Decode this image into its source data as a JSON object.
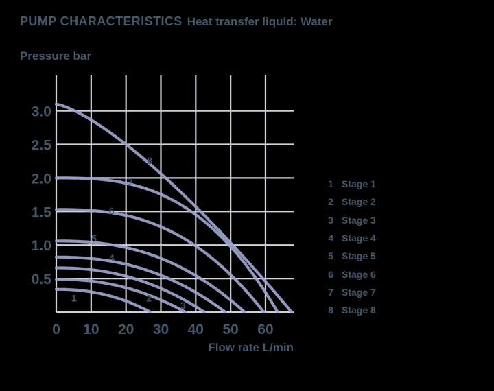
{
  "title": {
    "main": "PUMP CHARACTERISTICS",
    "subtitle": "Heat transfer liquid: Water"
  },
  "axes": {
    "y_title": "Pressure bar",
    "x_title": "Flow rate L/min",
    "y_ticks": [
      "0.5",
      "1.0",
      "1.5",
      "2.0",
      "2.5",
      "3.0"
    ],
    "x_ticks": [
      "0",
      "10",
      "20",
      "30",
      "40",
      "50",
      "60"
    ]
  },
  "chart_data": {
    "type": "line",
    "title": "PUMP CHARACTERISTICS Heat transfer liquid: Water",
    "xlabel": "Flow rate L/min",
    "ylabel": "Pressure bar",
    "xlim": [
      0,
      68
    ],
    "ylim": [
      0,
      3.5
    ],
    "grid": true,
    "legend_position": "right",
    "x_tick_values": [
      0,
      10,
      20,
      30,
      40,
      50,
      60
    ],
    "y_tick_values": [
      0.5,
      1.0,
      1.5,
      2.0,
      2.5,
      3.0
    ],
    "series": [
      {
        "name": "Stage 1",
        "label": "1",
        "shutoff_pressure_bar": 0.34,
        "max_flow_l_min": 27,
        "shape_exp": 2.2,
        "points": [
          [
            0,
            0.34
          ],
          [
            10,
            0.3
          ],
          [
            20,
            0.16
          ],
          [
            27,
            0
          ]
        ],
        "label_at": {
          "q": 5.1,
          "p": 0.21
        }
      },
      {
        "name": "Stage 2",
        "label": "2",
        "shutoff_pressure_bar": 0.49,
        "max_flow_l_min": 37,
        "shape_exp": 2.2,
        "points": [
          [
            0,
            0.49
          ],
          [
            10,
            0.46
          ],
          [
            20,
            0.36
          ],
          [
            30,
            0.18
          ],
          [
            37,
            0
          ]
        ],
        "label_at": {
          "q": 26.6,
          "p": 0.21
        }
      },
      {
        "name": "Stage 3",
        "label": "3",
        "shutoff_pressure_bar": 0.66,
        "max_flow_l_min": 42.5,
        "shape_exp": 2.2,
        "points": [
          [
            0,
            0.66
          ],
          [
            10,
            0.63
          ],
          [
            20,
            0.53
          ],
          [
            30,
            0.35
          ],
          [
            40,
            0.08
          ],
          [
            42.5,
            0
          ]
        ],
        "label_at": {
          "q": 36.4,
          "p": 0.1
        }
      },
      {
        "name": "Stage 4",
        "label": "4",
        "shutoff_pressure_bar": 0.82,
        "max_flow_l_min": 48.5,
        "shape_exp": 2.3,
        "points": [
          [
            0,
            0.82
          ],
          [
            10,
            0.8
          ],
          [
            20,
            0.71
          ],
          [
            30,
            0.55
          ],
          [
            40,
            0.29
          ],
          [
            48.5,
            0
          ]
        ],
        "label_at": {
          "q": 15.9,
          "p": 0.81
        }
      },
      {
        "name": "Stage 5",
        "label": "5",
        "shutoff_pressure_bar": 1.06,
        "max_flow_l_min": 54,
        "shape_exp": 2.4,
        "points": [
          [
            0,
            1.06
          ],
          [
            10,
            1.04
          ],
          [
            20,
            0.96
          ],
          [
            30,
            0.8
          ],
          [
            40,
            0.54
          ],
          [
            50,
            0.18
          ],
          [
            54,
            0
          ]
        ],
        "label_at": {
          "q": 10.8,
          "p": 1.1
        }
      },
      {
        "name": "Stage 6",
        "label": "6",
        "shutoff_pressure_bar": 1.53,
        "max_flow_l_min": 59.5,
        "shape_exp": 2.6,
        "points": [
          [
            0,
            1.53
          ],
          [
            10,
            1.52
          ],
          [
            20,
            1.44
          ],
          [
            30,
            1.27
          ],
          [
            40,
            0.99
          ],
          [
            50,
            0.56
          ],
          [
            59.5,
            0
          ]
        ],
        "label_at": {
          "q": 15.9,
          "p": 1.51
        }
      },
      {
        "name": "Stage 7",
        "label": "7",
        "shutoff_pressure_bar": 2.0,
        "max_flow_l_min": 63.5,
        "shape_exp": 2.8,
        "points": [
          [
            0,
            2.0
          ],
          [
            10,
            1.99
          ],
          [
            20,
            1.92
          ],
          [
            30,
            1.76
          ],
          [
            40,
            1.45
          ],
          [
            50,
            0.98
          ],
          [
            60,
            0.29
          ],
          [
            63.5,
            0
          ]
        ],
        "label_at": {
          "q": 21.2,
          "p": 1.93
        }
      },
      {
        "name": "Stage 8",
        "label": "8",
        "shutoff_pressure_bar": 3.1,
        "max_flow_l_min": 67.5,
        "shape_exp": 1.35,
        "points": [
          [
            0,
            3.1
          ],
          [
            10,
            2.86
          ],
          [
            20,
            2.5
          ],
          [
            30,
            2.06
          ],
          [
            40,
            1.57
          ],
          [
            50,
            1.03
          ],
          [
            60,
            0.46
          ],
          [
            67.5,
            0
          ]
        ],
        "label_at": {
          "q": 26.8,
          "p": 2.26
        }
      }
    ]
  },
  "legend": {
    "items": [
      {
        "num": "1",
        "label": "Stage 1"
      },
      {
        "num": "2",
        "label": "Stage 2"
      },
      {
        "num": "3",
        "label": "Stage 3"
      },
      {
        "num": "4",
        "label": "Stage 4"
      },
      {
        "num": "5",
        "label": "Stage 5"
      },
      {
        "num": "6",
        "label": "Stage 6"
      },
      {
        "num": "7",
        "label": "Stage 7"
      },
      {
        "num": "8",
        "label": "Stage 8"
      }
    ]
  },
  "colors": {
    "background": "#000000",
    "text": "#45586b",
    "curve": "#9da3cd",
    "grid": "#ced3da"
  }
}
